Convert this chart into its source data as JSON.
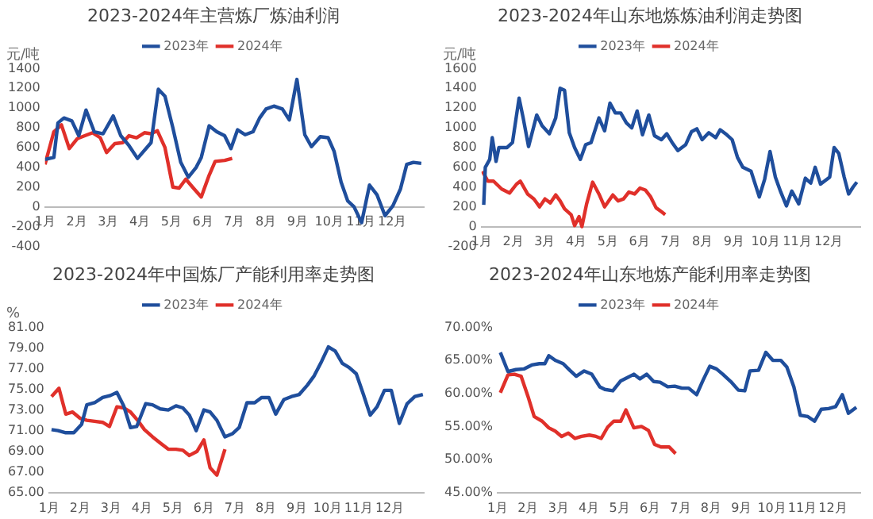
{
  "chart_data": [
    {
      "type": "line",
      "title": "2023-2024年主营炼厂炼油利润",
      "ylabel": "元/吨",
      "legend": "top",
      "marker": "none",
      "line_style": "solid",
      "grid": false,
      "xlim": [
        1,
        13
      ],
      "xticks": [
        {
          "value": 1,
          "label": "1月"
        },
        {
          "value": 2,
          "label": "2月"
        },
        {
          "value": 3,
          "label": "3月"
        },
        {
          "value": 4,
          "label": "4月"
        },
        {
          "value": 5,
          "label": "5月"
        },
        {
          "value": 6,
          "label": "6月"
        },
        {
          "value": 7,
          "label": "7月"
        },
        {
          "value": 8,
          "label": "8月"
        },
        {
          "value": 9,
          "label": "9月"
        },
        {
          "value": 10,
          "label": "10月"
        },
        {
          "value": 11,
          "label": "11月"
        },
        {
          "value": 12,
          "label": "12月"
        }
      ],
      "ylim": [
        -400,
        1400
      ],
      "yticks": [
        -400,
        -200,
        0,
        200,
        400,
        600,
        800,
        1000,
        1200,
        1400
      ],
      "series": [
        {
          "name": "2023年",
          "color": "#1f4e9c",
          "x": [
            1.0,
            1.28,
            1.41,
            1.6,
            1.85,
            2.07,
            2.3,
            2.56,
            2.84,
            3.16,
            3.4,
            3.66,
            3.93,
            4.36,
            4.59,
            4.8,
            5.05,
            5.3,
            5.54,
            5.79,
            5.95,
            6.2,
            6.44,
            6.69,
            6.89,
            7.1,
            7.34,
            7.59,
            7.8,
            8.0,
            8.25,
            8.52,
            8.74,
            8.98,
            9.23,
            9.44,
            9.72,
            9.97,
            10.16,
            10.38,
            10.59,
            10.79,
            11.03,
            11.28,
            11.52,
            11.77,
            12.02,
            12.26,
            12.46,
            12.67,
            12.92
          ],
          "values": [
            480,
            500,
            850,
            900,
            870,
            720,
            980,
            760,
            740,
            920,
            720,
            620,
            490,
            650,
            1190,
            1120,
            800,
            450,
            300,
            400,
            500,
            820,
            760,
            720,
            590,
            780,
            730,
            760,
            900,
            990,
            1020,
            990,
            880,
            1290,
            730,
            610,
            710,
            700,
            560,
            250,
            60,
            0,
            -160,
            220,
            120,
            -90,
            10,
            180,
            430,
            450,
            440
          ]
        },
        {
          "name": "2024年",
          "color": "#e0302a",
          "x": [
            1.0,
            1.28,
            1.52,
            1.77,
            2.02,
            2.26,
            2.51,
            2.75,
            2.95,
            3.21,
            3.46,
            3.66,
            3.9,
            4.15,
            4.36,
            4.56,
            4.8,
            5.05,
            5.25,
            5.46,
            5.7,
            5.95,
            6.2,
            6.39,
            6.69,
            6.93
          ],
          "values": [
            430,
            760,
            830,
            590,
            690,
            720,
            750,
            700,
            550,
            640,
            650,
            720,
            700,
            750,
            740,
            770,
            600,
            200,
            190,
            280,
            190,
            100,
            320,
            460,
            470,
            490
          ]
        }
      ]
    },
    {
      "type": "line",
      "title": "2023-2024年山东地炼炼油利润走势图",
      "ylabel": "元/吨",
      "legend": "top",
      "marker": "none",
      "line_style": "solid",
      "grid": false,
      "xlim": [
        1,
        13
      ],
      "xticks": [
        {
          "value": 1,
          "label": "1月"
        },
        {
          "value": 2,
          "label": "2月"
        },
        {
          "value": 3,
          "label": "3月"
        },
        {
          "value": 4,
          "label": "4月"
        },
        {
          "value": 5,
          "label": "5月"
        },
        {
          "value": 6,
          "label": "6月"
        },
        {
          "value": 7,
          "label": "7月"
        },
        {
          "value": 8,
          "label": "8月"
        },
        {
          "value": 9,
          "label": "9月"
        },
        {
          "value": 10,
          "label": "10月"
        },
        {
          "value": 11,
          "label": "11月"
        },
        {
          "value": 12,
          "label": "12月"
        }
      ],
      "ylim": [
        -200,
        1600
      ],
      "yticks": [
        -200,
        0,
        200,
        400,
        600,
        800,
        1000,
        1200,
        1400,
        1600
      ],
      "series": [
        {
          "name": "2023年",
          "color": "#1f4e9c",
          "x": [
            1.07,
            1.12,
            1.26,
            1.34,
            1.46,
            1.55,
            1.81,
            1.98,
            2.19,
            2.32,
            2.49,
            2.75,
            2.92,
            3.15,
            3.35,
            3.49,
            3.63,
            3.78,
            3.95,
            4.13,
            4.3,
            4.47,
            4.72,
            4.9,
            5.07,
            5.24,
            5.41,
            5.59,
            5.76,
            5.93,
            6.1,
            6.3,
            6.48,
            6.7,
            6.87,
            7.04,
            7.22,
            7.47,
            7.65,
            7.82,
            7.99,
            8.2,
            8.42,
            8.56,
            8.77,
            8.94,
            9.11,
            9.28,
            9.54,
            9.8,
            9.97,
            10.14,
            10.31,
            10.48,
            10.66,
            10.83,
            11.05,
            11.26,
            11.43,
            11.57,
            11.74,
            12.03,
            12.17,
            12.32,
            12.49,
            12.63,
            12.77,
            12.89
          ],
          "values": [
            220,
            600,
            680,
            900,
            660,
            800,
            800,
            850,
            1300,
            1100,
            810,
            1130,
            1020,
            940,
            1100,
            1400,
            1380,
            950,
            800,
            680,
            830,
            850,
            1100,
            970,
            1250,
            1150,
            1150,
            1050,
            1000,
            1170,
            930,
            1130,
            920,
            880,
            940,
            850,
            770,
            830,
            960,
            990,
            880,
            950,
            900,
            980,
            930,
            880,
            700,
            600,
            560,
            300,
            480,
            760,
            500,
            350,
            210,
            360,
            230,
            490,
            440,
            600,
            430,
            500,
            800,
            740,
            500,
            330,
            400,
            450
          ]
        },
        {
          "name": "2024年",
          "color": "#e0302a",
          "x": [
            1.03,
            1.2,
            1.38,
            1.64,
            1.89,
            2.11,
            2.23,
            2.46,
            2.66,
            2.84,
            3.01,
            3.18,
            3.35,
            3.49,
            3.63,
            3.84,
            3.95,
            4.09,
            4.18,
            4.33,
            4.52,
            4.72,
            4.9,
            5.16,
            5.33,
            5.5,
            5.67,
            5.85,
            6.02,
            6.19,
            6.36,
            6.53,
            6.7,
            6.82
          ],
          "values": [
            560,
            460,
            460,
            380,
            340,
            430,
            460,
            330,
            280,
            200,
            280,
            240,
            320,
            260,
            180,
            120,
            10,
            100,
            0,
            230,
            450,
            330,
            200,
            320,
            260,
            280,
            350,
            330,
            390,
            370,
            300,
            190,
            150,
            120
          ]
        }
      ]
    },
    {
      "type": "line",
      "title": "2023-2024年中国炼厂产能利用率走势图",
      "ylabel": "%",
      "legend": "top",
      "marker": "none",
      "line_style": "solid",
      "grid": false,
      "xlim": [
        1,
        13.1
      ],
      "xticks": [
        {
          "value": 1,
          "label": "1月"
        },
        {
          "value": 2,
          "label": "2月"
        },
        {
          "value": 3,
          "label": "3月"
        },
        {
          "value": 4,
          "label": "4月"
        },
        {
          "value": 5,
          "label": "5月"
        },
        {
          "value": 6,
          "label": "6月"
        },
        {
          "value": 7,
          "label": "7月"
        },
        {
          "value": 8,
          "label": "8月"
        },
        {
          "value": 9,
          "label": "9月"
        },
        {
          "value": 10,
          "label": "10月"
        },
        {
          "value": 11,
          "label": "11月"
        },
        {
          "value": 12,
          "label": "12月"
        }
      ],
      "ylim": [
        65,
        81
      ],
      "yticks": [
        {
          "value": 65,
          "label": "65.00"
        },
        {
          "value": 67,
          "label": "67.00"
        },
        {
          "value": 69,
          "label": "69.00"
        },
        {
          "value": 71,
          "label": "71.00"
        },
        {
          "value": 73,
          "label": "73.00"
        },
        {
          "value": 75,
          "label": "75.00"
        },
        {
          "value": 77,
          "label": "77.00"
        },
        {
          "value": 79,
          "label": "79.00"
        },
        {
          "value": 81,
          "label": "81.00"
        }
      ],
      "series": [
        {
          "name": "2023年",
          "color": "#1f4e9c",
          "x": [
            1.08,
            1.29,
            1.54,
            1.8,
            2.05,
            2.22,
            2.47,
            2.73,
            2.98,
            3.19,
            3.41,
            3.63,
            3.83,
            4.12,
            4.34,
            4.59,
            4.85,
            5.1,
            5.32,
            5.53,
            5.75,
            6.0,
            6.2,
            6.42,
            6.68,
            6.92,
            7.14,
            7.39,
            7.64,
            7.86,
            8.1,
            8.32,
            8.58,
            8.83,
            9.08,
            9.34,
            9.56,
            9.8,
            10.02,
            10.24,
            10.47,
            10.69,
            10.92,
            11.15,
            11.37,
            11.59,
            11.83,
            12.05,
            12.31,
            12.56,
            12.81,
            13.07
          ],
          "values": [
            71.1,
            71.0,
            70.8,
            70.8,
            71.6,
            73.5,
            73.7,
            74.2,
            74.4,
            74.7,
            73.4,
            71.3,
            71.4,
            73.6,
            73.5,
            73.1,
            73.0,
            73.4,
            73.2,
            72.5,
            71.0,
            73.0,
            72.8,
            72.0,
            70.4,
            70.7,
            71.3,
            73.7,
            73.7,
            74.2,
            74.2,
            72.6,
            74.0,
            74.3,
            74.5,
            75.4,
            76.3,
            77.7,
            79.1,
            78.7,
            77.5,
            77.1,
            76.5,
            74.5,
            72.5,
            73.3,
            74.9,
            74.9,
            71.7,
            73.6,
            74.3,
            74.5
          ]
        },
        {
          "name": "2024年",
          "color": "#e0302a",
          "x": [
            1.08,
            1.32,
            1.54,
            1.76,
            2.0,
            2.22,
            2.47,
            2.73,
            2.95,
            3.19,
            3.41,
            3.63,
            3.86,
            4.08,
            4.34,
            4.59,
            4.85,
            5.1,
            5.32,
            5.53,
            5.78,
            6.0,
            6.2,
            6.42,
            6.68
          ],
          "values": [
            74.3,
            75.1,
            72.6,
            72.8,
            72.2,
            72.0,
            71.9,
            71.8,
            71.4,
            73.3,
            73.2,
            72.8,
            72.0,
            71.1,
            70.4,
            69.8,
            69.2,
            69.2,
            69.1,
            68.6,
            69.0,
            70.1,
            67.4,
            66.7,
            69.2
          ]
        }
      ]
    },
    {
      "type": "line",
      "title": "2023-2024年山东地炼产能利用率走势图",
      "legend": "top",
      "marker": "none",
      "line_style": "solid",
      "grid": false,
      "xlim": [
        1,
        12.9
      ],
      "xticks": [
        {
          "value": 1,
          "label": "1月"
        },
        {
          "value": 2,
          "label": "2月"
        },
        {
          "value": 3,
          "label": "3月"
        },
        {
          "value": 4,
          "label": "4月"
        },
        {
          "value": 5,
          "label": "5月"
        },
        {
          "value": 6,
          "label": "6月"
        },
        {
          "value": 7,
          "label": "7月"
        },
        {
          "value": 8,
          "label": "8月"
        },
        {
          "value": 9,
          "label": "9月"
        },
        {
          "value": 10,
          "label": "10月"
        },
        {
          "value": 11,
          "label": "11月"
        },
        {
          "value": 12,
          "label": "12月"
        }
      ],
      "ylim": [
        45,
        70
      ],
      "yticks": [
        {
          "value": 45,
          "label": "45.00%"
        },
        {
          "value": 50,
          "label": "50.00%"
        },
        {
          "value": 55,
          "label": "55.00%"
        },
        {
          "value": 60,
          "label": "60.00%"
        },
        {
          "value": 65,
          "label": "65.00%"
        },
        {
          "value": 70,
          "label": "70.00%"
        }
      ],
      "series": [
        {
          "name": "2023年",
          "color": "#1f4e9c",
          "x": [
            1.09,
            1.34,
            1.6,
            1.86,
            2.12,
            2.37,
            2.55,
            2.68,
            2.89,
            3.15,
            3.37,
            3.58,
            3.84,
            4.09,
            4.35,
            4.52,
            4.78,
            5.04,
            5.26,
            5.47,
            5.67,
            5.89,
            6.12,
            6.33,
            6.58,
            6.81,
            7.05,
            7.27,
            7.53,
            7.74,
            7.96,
            8.18,
            8.39,
            8.65,
            8.9,
            9.11,
            9.28,
            9.56,
            9.8,
            10.03,
            10.29,
            10.49,
            10.72,
            10.93,
            11.18,
            11.4,
            11.62,
            11.86,
            12.09,
            12.31,
            12.51,
            12.77
          ],
          "values": [
            66.2,
            63.3,
            63.6,
            63.7,
            64.3,
            64.5,
            64.5,
            65.7,
            65.0,
            64.5,
            63.5,
            62.6,
            63.4,
            62.9,
            61.0,
            60.6,
            60.4,
            61.9,
            62.4,
            62.9,
            62.2,
            62.9,
            61.8,
            61.7,
            61.0,
            61.1,
            60.8,
            60.8,
            59.8,
            62.0,
            64.1,
            63.7,
            62.9,
            61.8,
            60.5,
            60.4,
            63.4,
            63.5,
            66.2,
            65.0,
            65.0,
            64.0,
            61.0,
            56.7,
            56.5,
            55.8,
            57.6,
            57.7,
            58.0,
            59.8,
            57.0,
            57.9
          ]
        },
        {
          "name": "2024年",
          "color": "#e0302a",
          "x": [
            1.09,
            1.34,
            1.55,
            1.77,
            2.0,
            2.2,
            2.46,
            2.68,
            2.89,
            3.1,
            3.32,
            3.54,
            3.75,
            4.01,
            4.23,
            4.4,
            4.61,
            4.81,
            5.04,
            5.21,
            5.47,
            5.72,
            5.95,
            6.15,
            6.36,
            6.63,
            6.84
          ],
          "values": [
            60.1,
            62.8,
            62.9,
            62.6,
            59.5,
            56.5,
            55.8,
            54.8,
            54.3,
            53.5,
            54.0,
            53.2,
            53.5,
            53.7,
            53.5,
            53.2,
            54.9,
            55.8,
            55.8,
            57.5,
            54.8,
            55.0,
            54.4,
            52.3,
            51.9,
            51.9,
            50.9
          ]
        }
      ]
    }
  ]
}
